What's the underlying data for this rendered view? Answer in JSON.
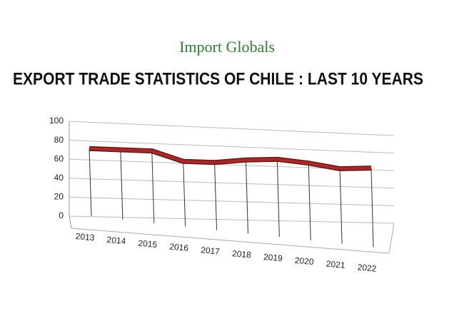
{
  "header": {
    "logo": "Import Globals"
  },
  "chart_data": {
    "type": "line",
    "title": "EXPORT TRADE STATISTICS OF CHILE : LAST 10 YEARS",
    "categories": [
      "2013",
      "2014",
      "2015",
      "2016",
      "2017",
      "2018",
      "2019",
      "2020",
      "2021",
      "2022"
    ],
    "values": [
      72,
      72,
      72,
      62,
      62,
      66,
      68,
      65,
      60,
      62
    ],
    "color": "#a52a2a",
    "ylim": [
      0,
      100
    ],
    "yticks": [
      0,
      20,
      40,
      60,
      80,
      100
    ],
    "grid": true
  }
}
